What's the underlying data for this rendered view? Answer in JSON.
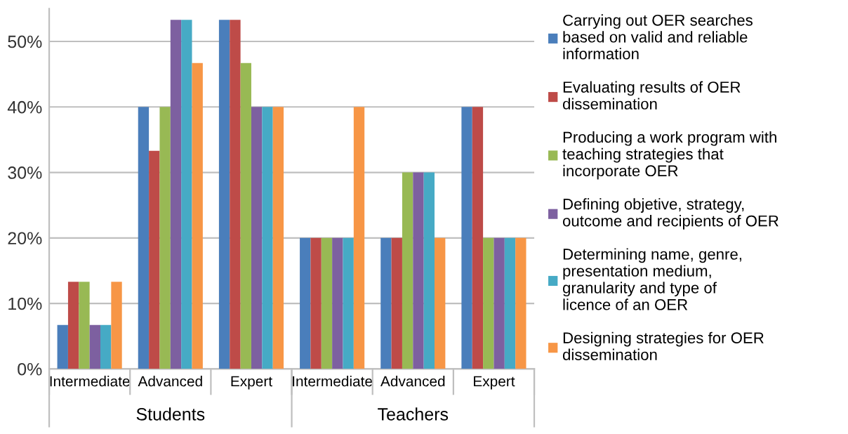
{
  "chart_data": {
    "type": "bar",
    "categories": [
      "Intermediate",
      "Advanced",
      "Expert",
      "Intermediate",
      "Advanced",
      "Expert"
    ],
    "series": [
      {
        "name": "Carrying out OER searches based on valid and reliable information",
        "color": "#4a7ebb",
        "values": [
          6.7,
          40,
          53.3,
          20,
          20,
          40
        ]
      },
      {
        "name": "Evaluating results of OER dissemination",
        "color": "#be4b48",
        "values": [
          13.3,
          33.3,
          53.3,
          20,
          20,
          40
        ]
      },
      {
        "name": "Producing a work program with teaching strategies that incorporate OER",
        "color": "#98b954",
        "values": [
          13.3,
          40,
          46.7,
          20,
          30,
          20
        ]
      },
      {
        "name": "Defining objetive, strategy, outcome and recipients of OER",
        "color": "#7d60a0",
        "values": [
          6.7,
          53.3,
          40,
          20,
          30,
          20
        ]
      },
      {
        "name": "Determining name, genre, presentation medium, granularity and type of licence of an OER",
        "color": "#46aac5",
        "values": [
          6.7,
          53.3,
          40,
          20,
          30,
          20
        ]
      },
      {
        "name": "Designing strategies for OER dissemination",
        "color": "#f79646",
        "values": [
          13.3,
          46.7,
          40,
          40,
          20,
          20
        ]
      }
    ],
    "annotations": [
      "Students",
      "Teachers"
    ],
    "ylim": [
      0,
      55
    ],
    "yticks": [
      {
        "value": 0,
        "label": "0%"
      },
      {
        "value": 10,
        "label": "10%"
      },
      {
        "value": 20,
        "label": "20%"
      },
      {
        "value": 30,
        "label": "30%"
      },
      {
        "value": 40,
        "label": "40%"
      },
      {
        "value": 50,
        "label": "50%"
      }
    ],
    "grid": "y",
    "legend": "right"
  }
}
